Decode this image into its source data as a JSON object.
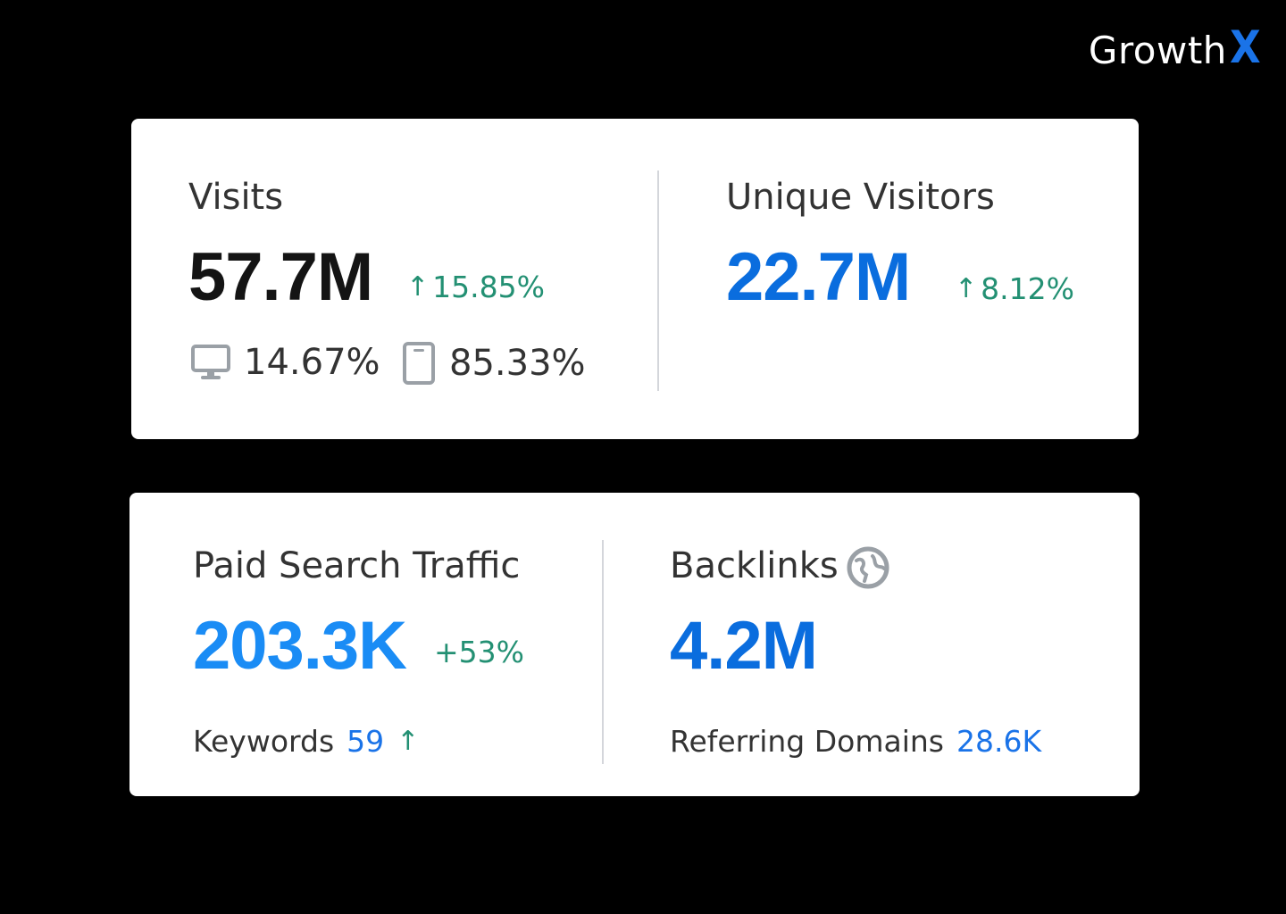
{
  "brand": {
    "name_main": "Growth",
    "name_accent": "X",
    "accent_color": "#1a73e8"
  },
  "visits": {
    "label": "Visits",
    "value": "57.7M",
    "change": "15.85%",
    "change_icon": "arrow-up-icon",
    "desktop_icon": "desktop-icon",
    "desktop_share": "14.67%",
    "mobile_icon": "mobile-icon",
    "mobile_share": "85.33%"
  },
  "unique_visitors": {
    "label": "Unique Visitors",
    "value": "22.7M",
    "change": "8.12%",
    "change_icon": "arrow-up-icon"
  },
  "paid_search": {
    "label": "Paid Search Traffic",
    "value": "203.3K",
    "change": "+53%",
    "keywords_label": "Keywords",
    "keywords_value": "59",
    "keywords_trend_icon": "arrow-up-icon"
  },
  "backlinks": {
    "label": "Backlinks",
    "info_icon": "globe-icon",
    "value": "4.2M",
    "referring_label": "Referring Domains",
    "referring_value": "28.6K"
  },
  "colors": {
    "background": "#000000",
    "card": "#ffffff",
    "positive": "#239073",
    "value_blue": "#0a6dde",
    "value_light_blue": "#1a8cf5",
    "link_blue": "#1a73e8"
  }
}
